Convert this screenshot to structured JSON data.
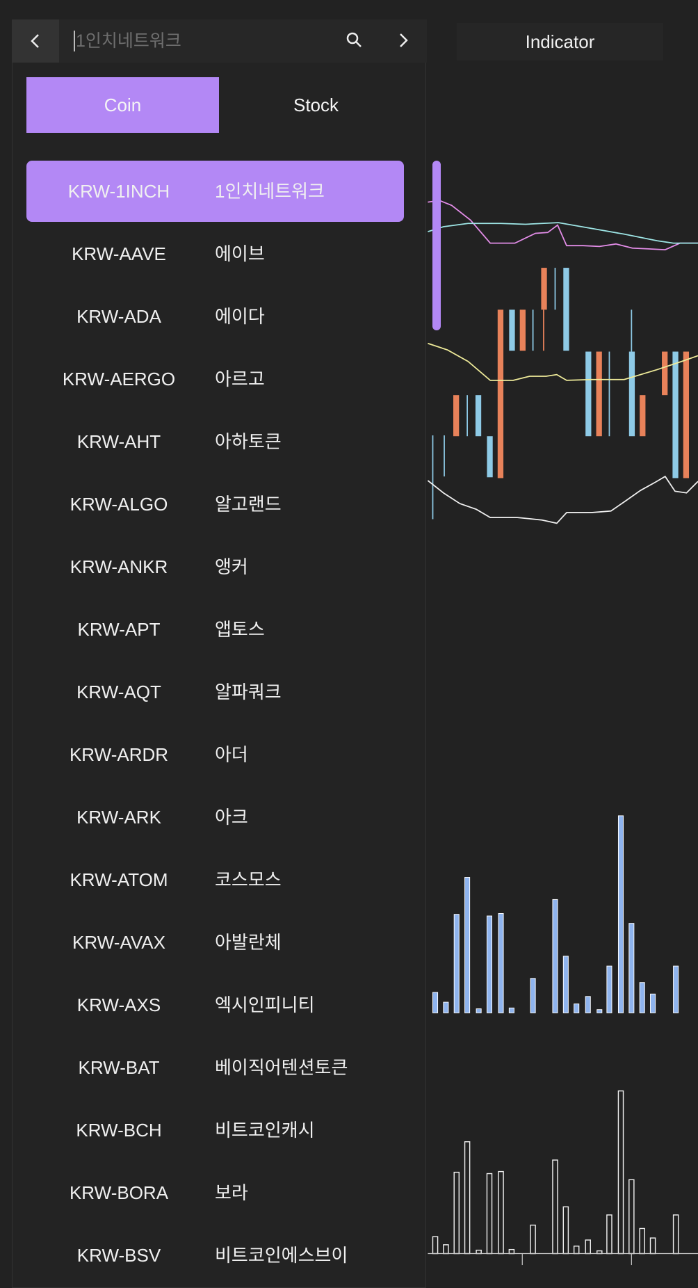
{
  "search": {
    "query": "1인치네트워크"
  },
  "indicator_button": "Indicator",
  "tabs": {
    "active": "Coin",
    "inactive": "Stock"
  },
  "list": [
    {
      "code": "KRW-1INCH",
      "name": "1인치네트워크"
    },
    {
      "code": "KRW-AAVE",
      "name": "에이브"
    },
    {
      "code": "KRW-ADA",
      "name": "에이다"
    },
    {
      "code": "KRW-AERGO",
      "name": "아르고"
    },
    {
      "code": "KRW-AHT",
      "name": "아하토큰"
    },
    {
      "code": "KRW-ALGO",
      "name": "알고랜드"
    },
    {
      "code": "KRW-ANKR",
      "name": "앵커"
    },
    {
      "code": "KRW-APT",
      "name": "앱토스"
    },
    {
      "code": "KRW-AQT",
      "name": "알파쿼크"
    },
    {
      "code": "KRW-ARDR",
      "name": "아더"
    },
    {
      "code": "KRW-ARK",
      "name": "아크"
    },
    {
      "code": "KRW-ATOM",
      "name": "코스모스"
    },
    {
      "code": "KRW-AVAX",
      "name": "아발란체"
    },
    {
      "code": "KRW-AXS",
      "name": "엑시인피니티"
    },
    {
      "code": "KRW-BAT",
      "name": "베이직어텐션토큰"
    },
    {
      "code": "KRW-BCH",
      "name": "비트코인캐시"
    },
    {
      "code": "KRW-BORA",
      "name": "보라"
    },
    {
      "code": "KRW-BSV",
      "name": "비트코인에스브이"
    }
  ]
}
